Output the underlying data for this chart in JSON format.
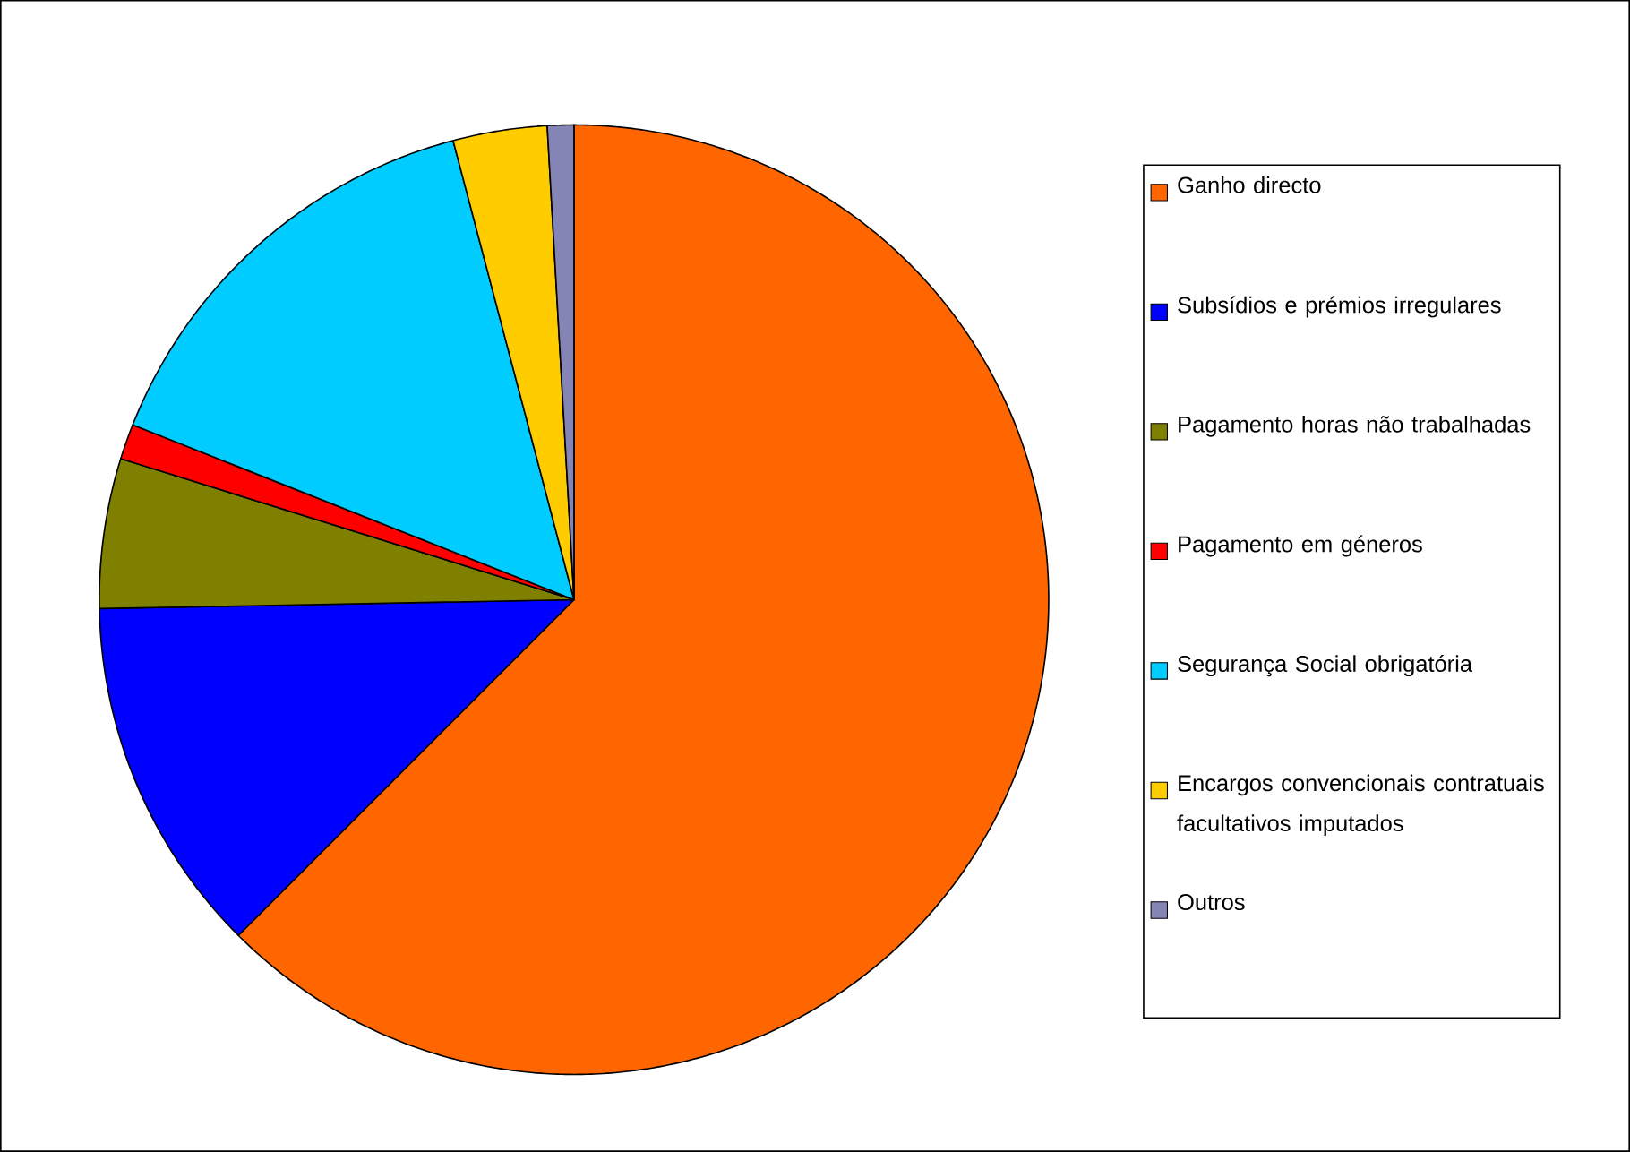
{
  "chart_data": {
    "type": "pie",
    "categories": [
      "Ganho directo",
      "Subsídios e prémios irregulares",
      "Pagamento horas não trabalhadas",
      "Pagamento em géneros",
      "Segurança Social obrigatória",
      "Encargos convencionais contratuais facultativos imputados",
      "Outros"
    ],
    "values": [
      62.5,
      12.2,
      5.1,
      1.2,
      14.9,
      3.2,
      0.9
    ],
    "colors": [
      "#ff6600",
      "#0000ff",
      "#808000",
      "#ff0000",
      "#00ccff",
      "#ffcc00",
      "#8585b5"
    ],
    "legend": "right"
  }
}
